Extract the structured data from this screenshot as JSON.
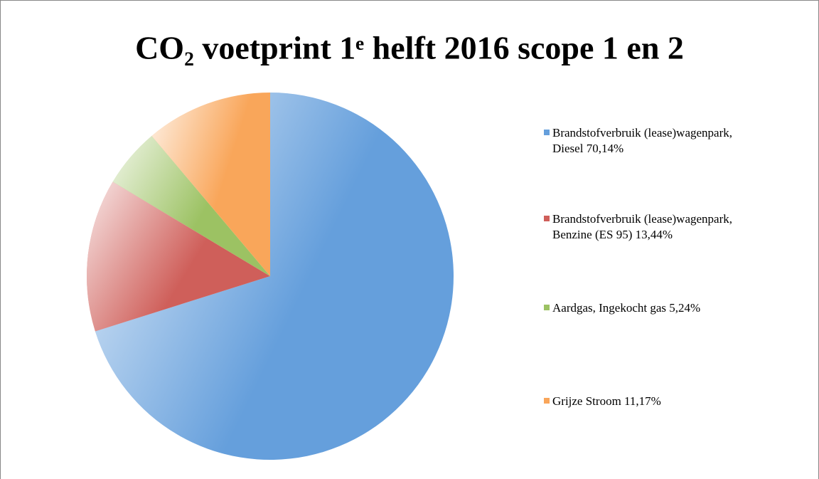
{
  "chart_data": {
    "type": "pie",
    "title": "CO₂ voetprint 1ᵉ helft 2016 scope 1 en 2",
    "categories": [
      "Brandstofverbruik (lease)wagenpark, Diesel",
      "Brandstofverbruik (lease)wagenpark, Benzine (ES 95)",
      "Aardgas, Ingekocht gas",
      "Grijze Stroom"
    ],
    "values": [
      70.14,
      13.44,
      5.24,
      11.17
    ],
    "value_labels": [
      "70,14%",
      "13,44%",
      "5,24%",
      "11,17%"
    ],
    "colors": [
      "#659fdc",
      "#cf5f5a",
      "#9cc263",
      "#f9a65a"
    ],
    "legend": "right"
  }
}
